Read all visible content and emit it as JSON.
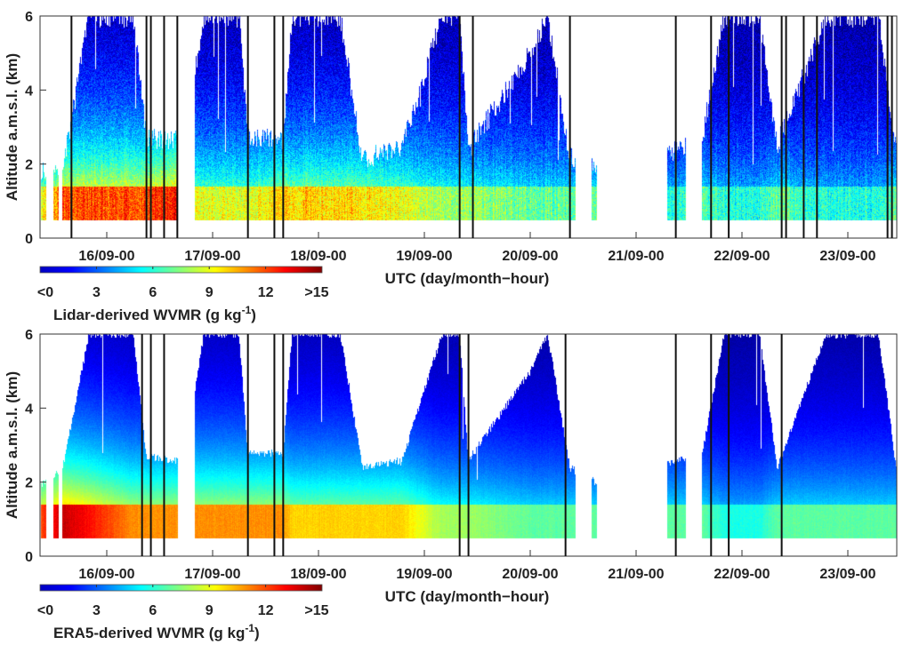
{
  "chart_data": [
    {
      "type": "heatmap",
      "title": "",
      "ylabel": "Altitude a.m.s.l. (km)",
      "xlabel": "UTC (day/month−hour)",
      "ylim": [
        0,
        6
      ],
      "yticks": [
        "0",
        "2",
        "4",
        "6"
      ],
      "xlim": [
        "15/09-09",
        "23/09-11"
      ],
      "xticks": [
        "16/09-00",
        "17/09-00",
        "18/09-00",
        "19/09-00",
        "20/09-00",
        "21/09-00",
        "22/09-00",
        "23/09-00"
      ],
      "colorbar": {
        "label": "Lidar-derived WVMR (g kg",
        "label_sup": "-1",
        "label_end": ")",
        "colormap": "jet",
        "range": [
          0,
          15
        ],
        "ticks": [
          "<0",
          "3",
          "6",
          "9",
          "12",
          ">15"
        ]
      },
      "data_min_altitude_km": 0.5,
      "data_segments": [
        [
          "15/09-09",
          "15/09-10"
        ],
        [
          "15/09-12",
          "15/09-13"
        ],
        [
          "15/09-14",
          "16/09-16"
        ],
        [
          "16/09-20",
          "20/09-10"
        ],
        [
          "20/09-14",
          "20/09-15"
        ],
        [
          "21/09-07",
          "21/09-11"
        ],
        [
          "21/09-15",
          "23/09-11"
        ]
      ],
      "profiles": [
        {
          "t": "15/09-09",
          "top_km": 1.9,
          "surface_wvmr": 9
        },
        {
          "t": "15/09-14",
          "top_km": 1.8,
          "surface_wvmr": 12
        },
        {
          "t": "15/09-20",
          "top_km": 6,
          "surface_wvmr": 12
        },
        {
          "t": "16/09-06",
          "top_km": 6,
          "surface_wvmr": 12
        },
        {
          "t": "16/09-09",
          "top_km": 2.7,
          "surface_wvmr": 12
        },
        {
          "t": "16/09-16",
          "top_km": 2.7,
          "surface_wvmr": 13
        },
        {
          "t": "16/09-20",
          "top_km": 4.5,
          "surface_wvmr": 9
        },
        {
          "t": "16/09-22",
          "top_km": 6,
          "surface_wvmr": 9
        },
        {
          "t": "17/09-06",
          "top_km": 6,
          "surface_wvmr": 9
        },
        {
          "t": "17/09-08",
          "top_km": 2.8,
          "surface_wvmr": 9
        },
        {
          "t": "17/09-16",
          "top_km": 2.7,
          "surface_wvmr": 10
        },
        {
          "t": "17/09-18",
          "top_km": 6,
          "surface_wvmr": 10
        },
        {
          "t": "18/09-05",
          "top_km": 6,
          "surface_wvmr": 10
        },
        {
          "t": "18/09-10",
          "top_km": 2.1,
          "surface_wvmr": 10
        },
        {
          "t": "18/09-19",
          "top_km": 2.5,
          "surface_wvmr": 9
        },
        {
          "t": "19/09-04",
          "top_km": 6,
          "surface_wvmr": 8
        },
        {
          "t": "19/09-08",
          "top_km": 6,
          "surface_wvmr": 8
        },
        {
          "t": "19/09-10",
          "top_km": 2.4,
          "surface_wvmr": 8
        },
        {
          "t": "20/09-00",
          "top_km": 5,
          "surface_wvmr": 7
        },
        {
          "t": "20/09-04",
          "top_km": 6,
          "surface_wvmr": 7
        },
        {
          "t": "20/09-09",
          "top_km": 2.2,
          "surface_wvmr": 7
        },
        {
          "t": "20/09-15",
          "top_km": 2,
          "surface_wvmr": 7
        },
        {
          "t": "21/09-07",
          "top_km": 2.3,
          "surface_wvmr": 6
        },
        {
          "t": "21/09-15",
          "top_km": 2.7,
          "surface_wvmr": 7
        },
        {
          "t": "21/09-20",
          "top_km": 6,
          "surface_wvmr": 6
        },
        {
          "t": "22/09-04",
          "top_km": 6,
          "surface_wvmr": 6
        },
        {
          "t": "22/09-08",
          "top_km": 2.5,
          "surface_wvmr": 7
        },
        {
          "t": "22/09-19",
          "top_km": 6,
          "surface_wvmr": 6
        },
        {
          "t": "23/09-07",
          "top_km": 6,
          "surface_wvmr": 6
        },
        {
          "t": "23/09-11",
          "top_km": 2.4,
          "surface_wvmr": 7
        }
      ],
      "vertical_markers": [
        "15/09-16",
        "16/09-09",
        "16/09-10",
        "16/09-13",
        "16/09-16",
        "17/09-08",
        "17/09-14",
        "17/09-16",
        "19/09-08",
        "19/09-11",
        "20/09-09",
        "21/09-09",
        "21/09-17",
        "21/09-21",
        "22/09-09",
        "22/09-10",
        "22/09-14",
        "22/09-17",
        "23/09-09",
        "23/09-10"
      ]
    },
    {
      "type": "heatmap",
      "title": "",
      "ylabel": "Altitude a.m.s.l. (km)",
      "xlabel": "UTC (day/month−hour)",
      "ylim": [
        0,
        6
      ],
      "yticks": [
        "0",
        "2",
        "4",
        "6"
      ],
      "xlim": [
        "15/09-09",
        "23/09-11"
      ],
      "xticks": [
        "16/09-00",
        "17/09-00",
        "18/09-00",
        "19/09-00",
        "20/09-00",
        "21/09-00",
        "22/09-00",
        "23/09-00"
      ],
      "colorbar": {
        "label": "ERA5-derived WVMR (g kg",
        "label_sup": "-1",
        "label_end": ")",
        "colormap": "jet",
        "range": [
          0,
          15
        ],
        "ticks": [
          "<0",
          "3",
          "6",
          "9",
          "12",
          ">15"
        ]
      },
      "data_min_altitude_km": 0.5,
      "data_segments": [
        [
          "15/09-09",
          "15/09-10"
        ],
        [
          "15/09-12",
          "15/09-13"
        ],
        [
          "15/09-14",
          "16/09-16"
        ],
        [
          "16/09-20",
          "20/09-10"
        ],
        [
          "20/09-14",
          "20/09-15"
        ],
        [
          "21/09-07",
          "21/09-11"
        ],
        [
          "21/09-15",
          "23/09-11"
        ]
      ],
      "profiles": [
        {
          "t": "15/09-09",
          "top_km": 1.9,
          "surface_wvmr": 12
        },
        {
          "t": "15/09-14",
          "top_km": 2.4,
          "surface_wvmr": 14
        },
        {
          "t": "15/09-20",
          "top_km": 6,
          "surface_wvmr": 13
        },
        {
          "t": "16/09-06",
          "top_km": 6,
          "surface_wvmr": 11
        },
        {
          "t": "16/09-09",
          "top_km": 2.7,
          "surface_wvmr": 11
        },
        {
          "t": "16/09-16",
          "top_km": 2.6,
          "surface_wvmr": 11
        },
        {
          "t": "16/09-20",
          "top_km": 4.5,
          "surface_wvmr": 11
        },
        {
          "t": "16/09-22",
          "top_km": 6,
          "surface_wvmr": 11
        },
        {
          "t": "17/09-06",
          "top_km": 6,
          "surface_wvmr": 11
        },
        {
          "t": "17/09-08",
          "top_km": 2.8,
          "surface_wvmr": 11
        },
        {
          "t": "17/09-16",
          "top_km": 2.8,
          "surface_wvmr": 11
        },
        {
          "t": "17/09-18",
          "top_km": 6,
          "surface_wvmr": 10
        },
        {
          "t": "18/09-05",
          "top_km": 6,
          "surface_wvmr": 10
        },
        {
          "t": "18/09-10",
          "top_km": 2.4,
          "surface_wvmr": 10
        },
        {
          "t": "18/09-19",
          "top_km": 2.6,
          "surface_wvmr": 10
        },
        {
          "t": "19/09-04",
          "top_km": 6,
          "surface_wvmr": 8
        },
        {
          "t": "19/09-08",
          "top_km": 6,
          "surface_wvmr": 8
        },
        {
          "t": "19/09-10",
          "top_km": 2.6,
          "surface_wvmr": 8
        },
        {
          "t": "20/09-00",
          "top_km": 5,
          "surface_wvmr": 7
        },
        {
          "t": "20/09-04",
          "top_km": 6,
          "surface_wvmr": 7
        },
        {
          "t": "20/09-09",
          "top_km": 2.4,
          "surface_wvmr": 7
        },
        {
          "t": "20/09-15",
          "top_km": 2,
          "surface_wvmr": 7
        },
        {
          "t": "21/09-07",
          "top_km": 2.5,
          "surface_wvmr": 7
        },
        {
          "t": "21/09-15",
          "top_km": 2.8,
          "surface_wvmr": 7
        },
        {
          "t": "21/09-20",
          "top_km": 6,
          "surface_wvmr": 6
        },
        {
          "t": "22/09-04",
          "top_km": 6,
          "surface_wvmr": 6
        },
        {
          "t": "22/09-08",
          "top_km": 2.4,
          "surface_wvmr": 7
        },
        {
          "t": "22/09-19",
          "top_km": 6,
          "surface_wvmr": 7
        },
        {
          "t": "23/09-07",
          "top_km": 6,
          "surface_wvmr": 7
        },
        {
          "t": "23/09-11",
          "top_km": 2.4,
          "surface_wvmr": 7
        }
      ],
      "vertical_markers": [
        "16/09-08",
        "16/09-10",
        "16/09-13",
        "17/09-08",
        "17/09-14",
        "17/09-16",
        "19/09-08",
        "19/09-10",
        "20/09-08",
        "21/09-09",
        "21/09-17",
        "21/09-21",
        "22/09-09"
      ]
    }
  ]
}
